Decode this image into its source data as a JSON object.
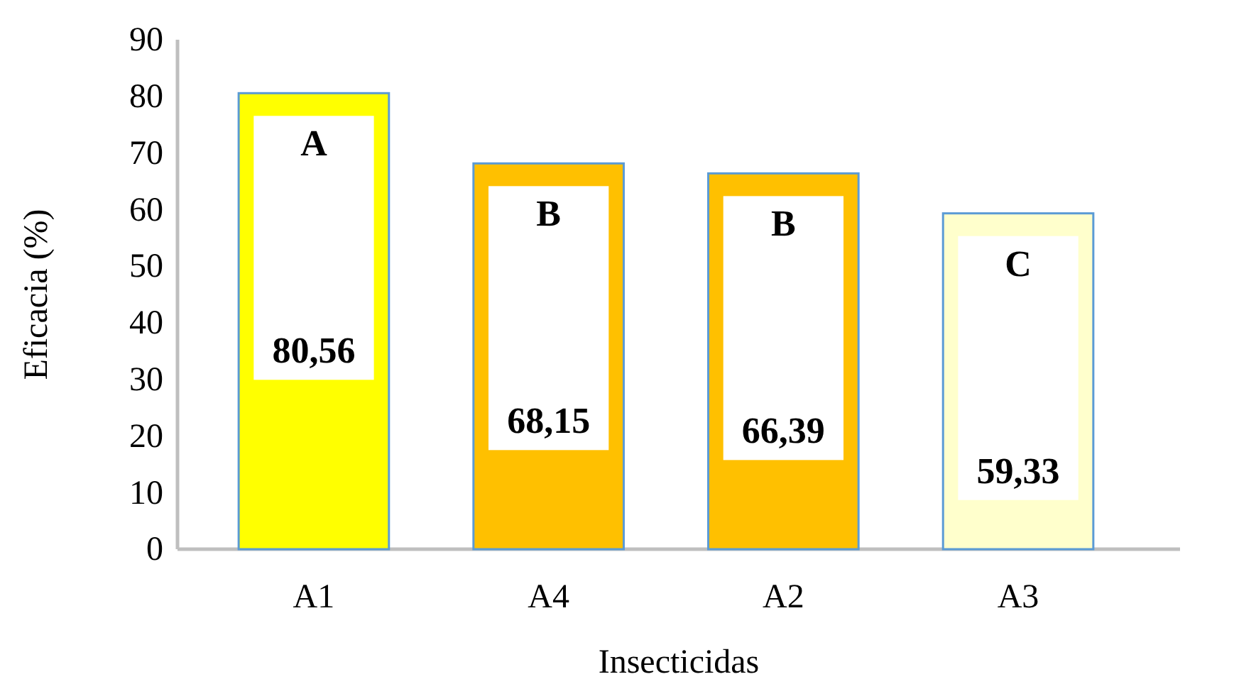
{
  "chart_data": {
    "type": "bar",
    "xlabel": "Insecticidas",
    "ylabel": "Eficacia (%)",
    "categories": [
      "A1",
      "A4",
      "A2",
      "A3"
    ],
    "values": [
      80.56,
      68.15,
      66.39,
      59.33
    ],
    "colors": [
      "#ffff00",
      "#ffc000",
      "#ffc000",
      "#ffffcc"
    ],
    "value_labels": [
      "80,56",
      "68,15",
      "66,39",
      "59,33"
    ],
    "annotations": [
      "A",
      "B",
      "B",
      "C"
    ],
    "ylim": [
      0,
      90
    ],
    "yticks": [
      0,
      10,
      20,
      30,
      40,
      50,
      60,
      70,
      80,
      90
    ],
    "grid": false
  }
}
